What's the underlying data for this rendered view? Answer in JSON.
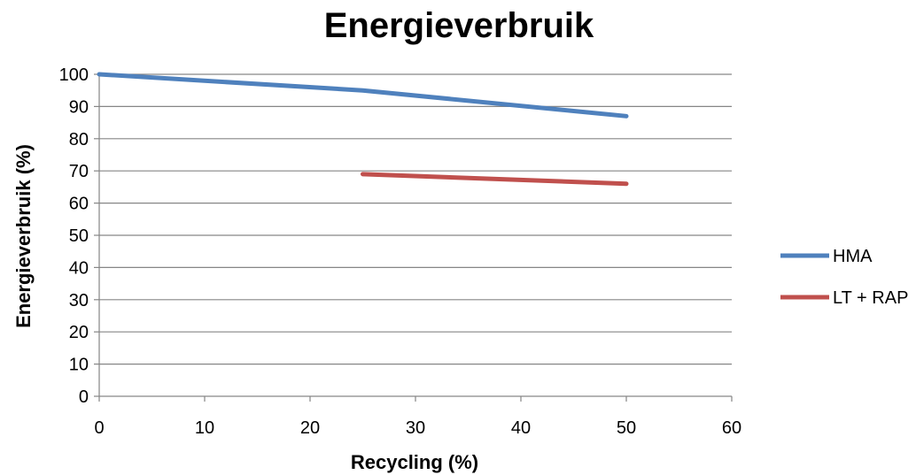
{
  "chart_data": {
    "type": "line",
    "title": "Energieverbruik",
    "xlabel": "Recycling (%)",
    "ylabel": "Energieverbruik (%)",
    "xlim": [
      0,
      60
    ],
    "ylim": [
      0,
      100
    ],
    "x_ticks": [
      0,
      10,
      20,
      30,
      40,
      50,
      60
    ],
    "y_ticks": [
      0,
      10,
      20,
      30,
      40,
      50,
      60,
      70,
      80,
      90,
      100
    ],
    "grid": "horizontal",
    "legend_position": "right",
    "series": [
      {
        "name": "HMA",
        "color": "#4f81bd",
        "x": [
          0,
          25,
          50
        ],
        "y": [
          100,
          95,
          87
        ]
      },
      {
        "name": "LT + RAP",
        "color": "#c0504d",
        "x": [
          25,
          50
        ],
        "y": [
          69,
          66
        ]
      }
    ]
  }
}
